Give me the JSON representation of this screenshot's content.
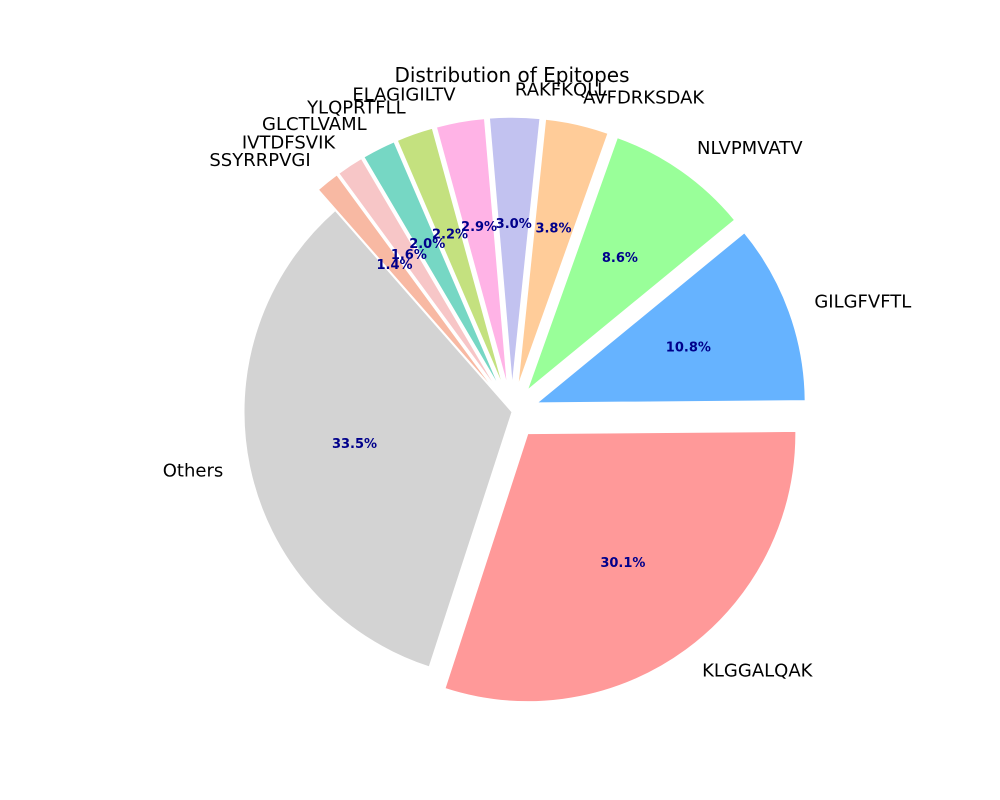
{
  "chart_data": {
    "type": "pie",
    "title": "Distribution of Epitopes",
    "pct_label_color": "#00008b",
    "slices": [
      {
        "label": "KLGGALQAK",
        "pct": 30.1,
        "color": "#ff9999",
        "exploded": true
      },
      {
        "label": "GILGFVFTL",
        "pct": 10.8,
        "color": "#66b3ff",
        "exploded": true
      },
      {
        "label": "NLVPMVATV",
        "pct": 8.6,
        "color": "#99ff99",
        "exploded": true
      },
      {
        "label": "AVFDRKSDAK",
        "pct": 3.8,
        "color": "#ffcc99",
        "exploded": true
      },
      {
        "label": "RAKFKQLL",
        "pct": 3.0,
        "color": "#c2c2f0",
        "exploded": true
      },
      {
        "label": "ELAGIGILTV",
        "pct": 2.9,
        "color": "#ffb3e6",
        "exploded": true
      },
      {
        "label": "YLQPRTFLL",
        "pct": 2.2,
        "color": "#c4e17f",
        "exploded": true
      },
      {
        "label": "GLCTLVAML",
        "pct": 2.0,
        "color": "#76d7c4",
        "exploded": true
      },
      {
        "label": "IVTDFSVIK",
        "pct": 1.6,
        "color": "#f7c6c7",
        "exploded": true
      },
      {
        "label": "SSYRRPVGI",
        "pct": 1.4,
        "color": "#f8b9a3",
        "exploded": true
      },
      {
        "label": "Others",
        "pct": 33.5,
        "color": "#d3d3d3",
        "exploded": false
      }
    ]
  }
}
